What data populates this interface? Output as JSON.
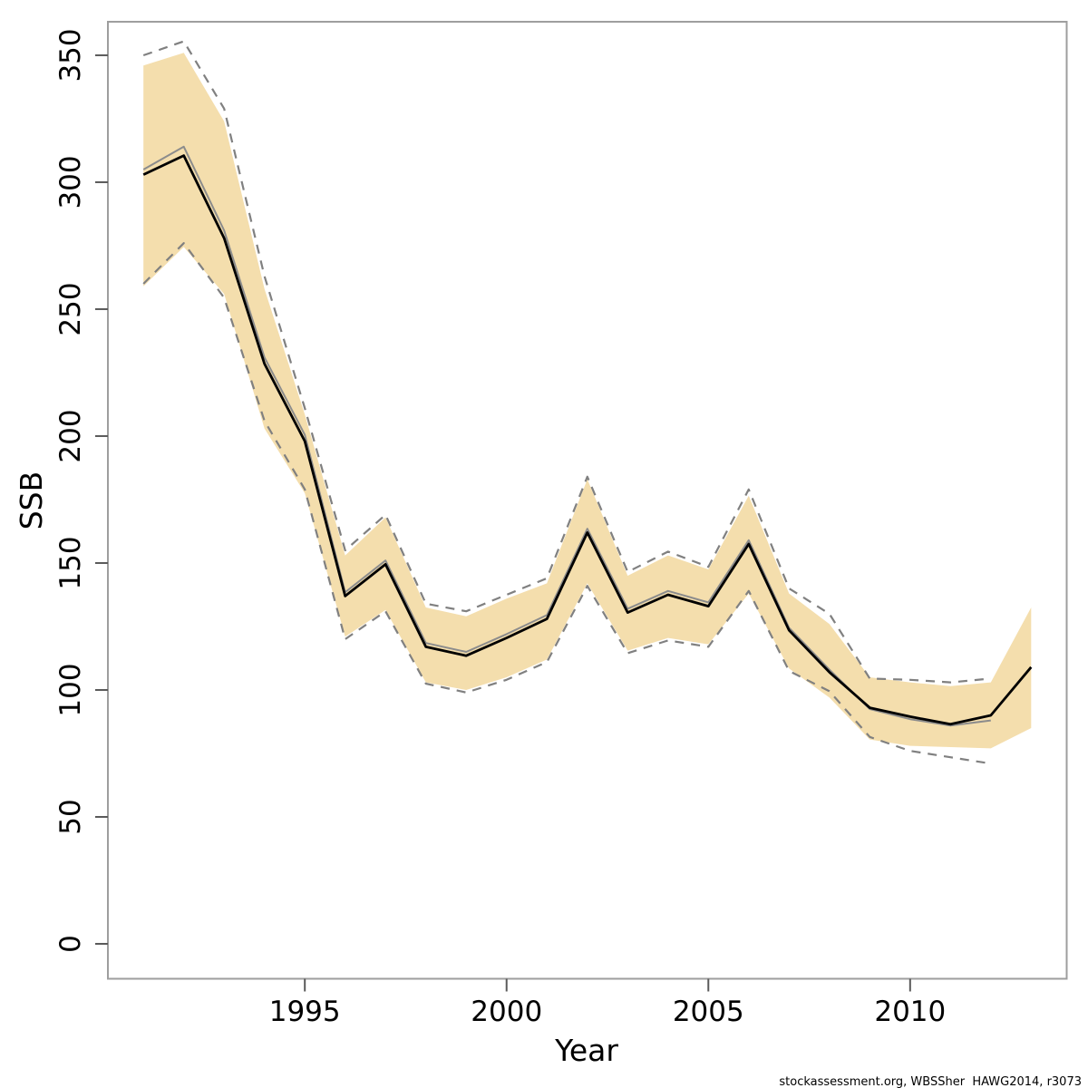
{
  "watermark": "stockassessment.org, WBSSher  HAWG2014, r3073",
  "chart_data": {
    "type": "line",
    "title": "",
    "xlabel": "Year",
    "ylabel": "SSB",
    "grid": false,
    "legend": null,
    "xlim": [
      1990.12,
      2013.88
    ],
    "ylim": [
      -13.75,
      363.2
    ],
    "x_ticks": [
      1995,
      2000,
      2005,
      2010
    ],
    "y_ticks": [
      0,
      50,
      100,
      150,
      200,
      250,
      300,
      350
    ],
    "x": [
      1991,
      1992,
      1993,
      1994,
      1995,
      1996,
      1997,
      1998,
      1999,
      2000,
      2001,
      2002,
      2003,
      2004,
      2005,
      2006,
      2007,
      2008,
      2009,
      2010,
      2011,
      2012,
      2013
    ],
    "series": [
      {
        "name": "ssb-estimate-current",
        "color": "#000000",
        "width": 2.8,
        "values": [
          303,
          310.5,
          278,
          228.5,
          198,
          137,
          149.5,
          117,
          113.5,
          120.5,
          128,
          162,
          130.5,
          137.5,
          133,
          157.5,
          123.5,
          107,
          93,
          89.5,
          86.5,
          90,
          109
        ]
      },
      {
        "name": "ssb-estimate-previous",
        "color": "#8c8c8c",
        "width": 2,
        "values": [
          305,
          314,
          281,
          231,
          200.5,
          138.5,
          151,
          118.5,
          115,
          122,
          129.5,
          163.5,
          132,
          139,
          134.5,
          159,
          124.5,
          108,
          92.5,
          88.5,
          86,
          88
        ]
      }
    ],
    "band": {
      "name": "confidence-band",
      "color": "#f4dead",
      "high": [
        346,
        351,
        324,
        258,
        208.5,
        153,
        168,
        132.5,
        129,
        136,
        142,
        183,
        145,
        153,
        147.5,
        176.5,
        138,
        126,
        105,
        103,
        101.5,
        103,
        132.5
      ],
      "low": [
        259,
        274.5,
        256,
        203,
        177.5,
        121,
        131.5,
        103,
        100,
        105,
        112,
        142,
        115.5,
        120.5,
        118,
        138,
        108.5,
        97,
        80.5,
        78,
        77.5,
        77,
        85
      ]
    },
    "dashed": {
      "name": "outer-confidence-interval",
      "color": "#808080",
      "width": 2.2,
      "dash": "10 8",
      "high": [
        350,
        355.5,
        329,
        263,
        211,
        155,
        169,
        134,
        131,
        137.5,
        144,
        184,
        146.5,
        154.5,
        148.5,
        179,
        140,
        130,
        104.5,
        104,
        103,
        104.5
      ],
      "low": [
        260,
        276,
        254.5,
        206,
        179,
        120,
        131,
        102.5,
        99,
        104,
        111,
        141,
        114.5,
        119.5,
        117,
        139,
        107.5,
        99.5,
        81.5,
        76,
        73.5,
        71
      ]
    },
    "box_color": "#9e9e9e",
    "tick_color": "#5a5a5a"
  }
}
